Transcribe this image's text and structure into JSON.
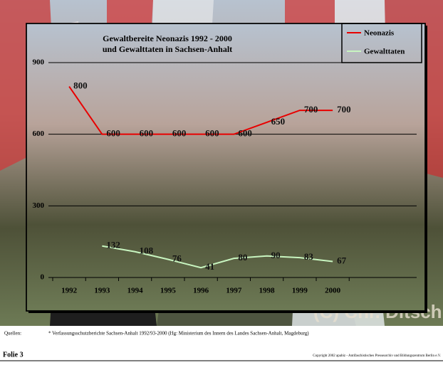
{
  "chart_data": {
    "type": "line",
    "title": [
      "Gewaltbereite Neonazis 1992 - 2000",
      "und Gewalttaten in Sachsen-Anhalt"
    ],
    "categories": [
      "1992",
      "1993",
      "1994",
      "1995",
      "1996",
      "1997",
      "1998",
      "1999",
      "2000"
    ],
    "series": [
      {
        "name": "Neonazis",
        "color": "#e80000",
        "values": [
          800,
          600,
          600,
          600,
          600,
          600,
          650,
          700,
          700
        ]
      },
      {
        "name": "Gewalttaten",
        "color": "#c8f5c0",
        "values": [
          null,
          132,
          108,
          76,
          41,
          80,
          90,
          83,
          67
        ]
      }
    ],
    "ylim": [
      0,
      900
    ],
    "yticks": [
      0,
      300,
      600,
      900
    ],
    "grid": true,
    "legend": "upper right"
  },
  "watermark": "(C) Chr. Ditsch",
  "footer": {
    "sources_label": "Quellen:",
    "sources": "* Verfassungsschutzberichte Sachsen-Anhalt 1992/93-2000 (Hg: Ministerium des Innern des Landes Sachsen-Anhalt, Magdeburg)",
    "slide": "Folie 3",
    "copyright": "Copyright 2002 apabiz - Antifaschistisches Pressearchiv und Bildungszentrum Berlin e.V."
  }
}
